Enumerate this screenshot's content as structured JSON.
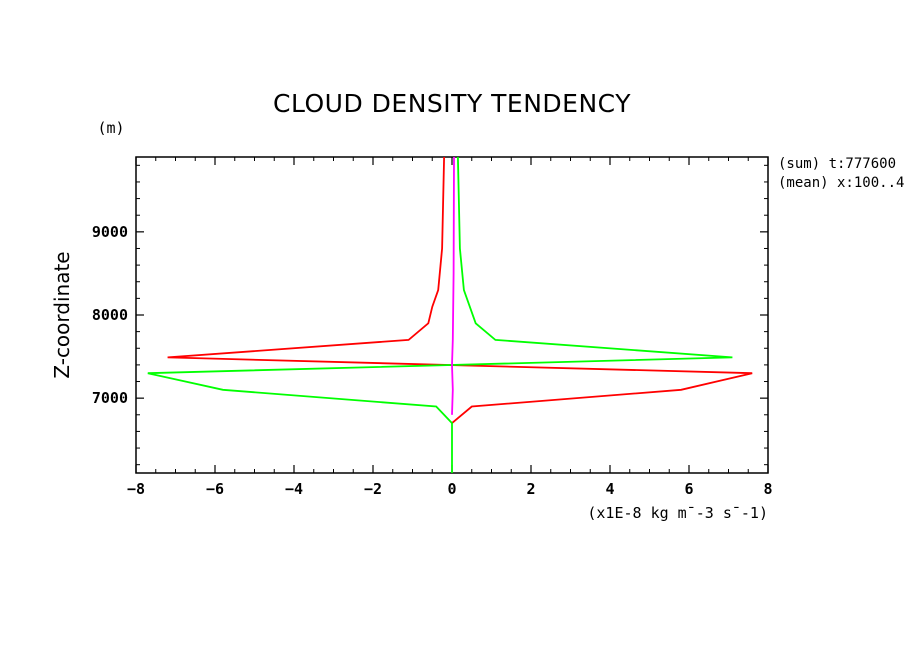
{
  "chart_data": {
    "type": "line",
    "title": "CLOUD DENSITY TENDENCY",
    "xlabel": "(x1E-8 kg m¯-3 s¯-1)",
    "ylabel": "Z-coordinate",
    "y_unit": "(m)",
    "annotations": [
      "(sum) t:777600",
      "(mean) x:100..4"
    ],
    "xlim": [
      -8,
      8
    ],
    "ylim": [
      6100,
      9900
    ],
    "xticks": [
      -8,
      -6,
      -4,
      -2,
      0,
      2,
      4,
      6,
      8
    ],
    "yticks": [
      7000,
      8000,
      9000
    ],
    "grid": false,
    "series": [
      {
        "color": "#ff0000",
        "points": [
          [
            -0.2,
            9900
          ],
          [
            -0.25,
            8800
          ],
          [
            -0.35,
            8300
          ],
          [
            -0.5,
            8100
          ],
          [
            -0.6,
            7900
          ],
          [
            -1.1,
            7700
          ],
          [
            -7.2,
            7490
          ],
          [
            7.6,
            7300
          ],
          [
            5.8,
            7100
          ],
          [
            0.5,
            6900
          ],
          [
            0.0,
            6700
          ]
        ]
      },
      {
        "color": "#00ff00",
        "points": [
          [
            0.15,
            9900
          ],
          [
            0.2,
            8800
          ],
          [
            0.3,
            8300
          ],
          [
            0.45,
            8100
          ],
          [
            0.6,
            7900
          ],
          [
            1.1,
            7700
          ],
          [
            7.1,
            7490
          ],
          [
            -7.7,
            7300
          ],
          [
            -5.8,
            7100
          ],
          [
            -0.4,
            6900
          ],
          [
            0.0,
            6700
          ],
          [
            0.0,
            6100
          ]
        ]
      },
      {
        "color": "#ff00ff",
        "points": [
          [
            0.05,
            9900
          ],
          [
            0.04,
            8500
          ],
          [
            0.02,
            7700
          ],
          [
            0.0,
            7400
          ],
          [
            0.02,
            7100
          ],
          [
            0.0,
            6800
          ]
        ]
      }
    ]
  }
}
